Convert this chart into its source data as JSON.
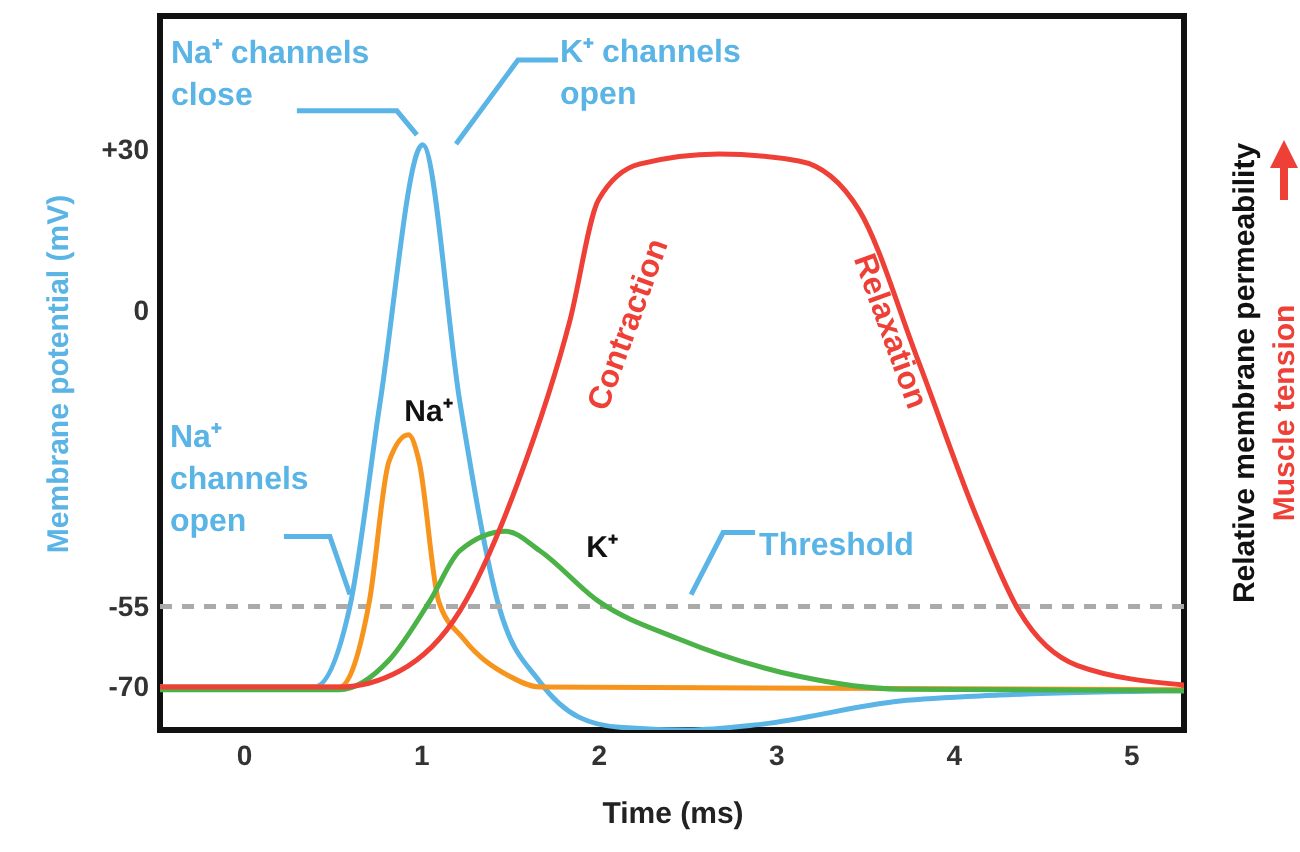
{
  "chart_data": {
    "type": "line",
    "xlabel": "Time (ms)",
    "ylabel": "Membrane potential (mV)",
    "y2label": "Relative membrane permeability",
    "y3label": "Muscle tension",
    "xlim": [
      -0.47,
      5.3
    ],
    "xticks": [
      0,
      1,
      2,
      3,
      4,
      5
    ],
    "ylim": [
      -78,
      55
    ],
    "yticks": [
      {
        "value": 30,
        "label": "+30"
      },
      0,
      -55,
      -70
    ],
    "marker": "none",
    "line_style": "solid",
    "series": [
      {
        "color": "#5ab4e5",
        "x": [
          -0.47,
          0.4,
          0.6,
          0.77,
          1.01,
          1.22,
          1.44,
          1.67,
          1.89,
          2.12,
          2.5,
          2.9,
          3.7,
          4.26,
          5.3
        ],
        "values": [
          -70,
          -70,
          -55,
          -17,
          31,
          -17,
          -55,
          -69,
          -75.6,
          -77.5,
          -78,
          -77,
          -72.6,
          -71.5,
          -70.7
        ]
      },
      {
        "name": "Na⁺",
        "color": "#f7941d",
        "x": [
          -0.47,
          0.54,
          0.71,
          0.82,
          0.93,
          0.99,
          1.1,
          1.24,
          1.5,
          1.67,
          5.3
        ],
        "values": [
          -70,
          -70,
          -54,
          -28,
          -23,
          -28,
          -54,
          -61,
          -68,
          -70,
          -70.5
        ]
      },
      {
        "name": "K⁺",
        "color": "#4bb247",
        "x": [
          -0.47,
          0.54,
          0.82,
          1.05,
          1.22,
          1.48,
          1.67,
          2,
          2.45,
          3.13,
          3.7,
          5.3
        ],
        "values": [
          -70.5,
          -70.5,
          -65,
          -54,
          -44.6,
          -41,
          -44.6,
          -54,
          -61,
          -68,
          -70.4,
          -70.7
        ]
      },
      {
        "color": "#ee4036",
        "x": [
          -0.47,
          0.54,
          0.88,
          1.22,
          1.55,
          1.84,
          2,
          2.23,
          2.68,
          3.13,
          3.47,
          3.8,
          4.14,
          4.37,
          4.7,
          5.3
        ],
        "values": [
          -70,
          -70,
          -67,
          -55.8,
          -31.6,
          -1.7,
          20.7,
          27.4,
          29.3,
          28,
          18.8,
          -9,
          -39,
          -55.8,
          -66,
          -69.6
        ]
      }
    ],
    "ref_lines": [
      {
        "axis": "y",
        "value": -55,
        "label": "Threshold",
        "color": "#aaaaaa",
        "line_style": "dashed"
      }
    ],
    "annotations": [
      {
        "text": "Na⁺ channels\nclose",
        "x": 1.0,
        "y": 31
      },
      "K⁺ channels\nopen",
      {
        "text": "Na⁺\nchannels\nopen",
        "x": 0.6,
        "y": -55
      },
      {
        "text": "Contraction",
        "x": 1.84,
        "y": -1.7
      },
      {
        "text": "Relaxation",
        "x": 3.8,
        "y": -9
      }
    ]
  }
}
